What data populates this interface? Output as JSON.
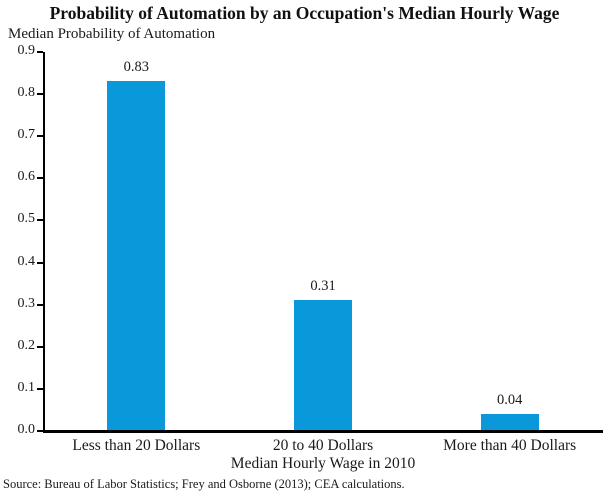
{
  "chart_data": {
    "type": "bar",
    "title": "Probability of Automation by an Occupation's Median Hourly Wage",
    "ylabel": "Median Probability of Automation",
    "xlabel": "Median Hourly Wage in 2010",
    "categories": [
      "Less than 20 Dollars",
      "20 to 40 Dollars",
      "More than 40 Dollars"
    ],
    "values": [
      0.83,
      0.31,
      0.04
    ],
    "data_labels": [
      "0.83",
      "0.31",
      "0.04"
    ],
    "ylim": [
      0.0,
      0.9
    ],
    "yticks": [
      "0.0",
      "0.1",
      "0.2",
      "0.3",
      "0.4",
      "0.5",
      "0.6",
      "0.7",
      "0.8",
      "0.9"
    ],
    "grid": false,
    "legend": "none",
    "bar_color": "#0999DA",
    "axis_color": "#000000",
    "source": "Source: Bureau of Labor Statistics; Frey and Osborne (2013); CEA calculations."
  }
}
